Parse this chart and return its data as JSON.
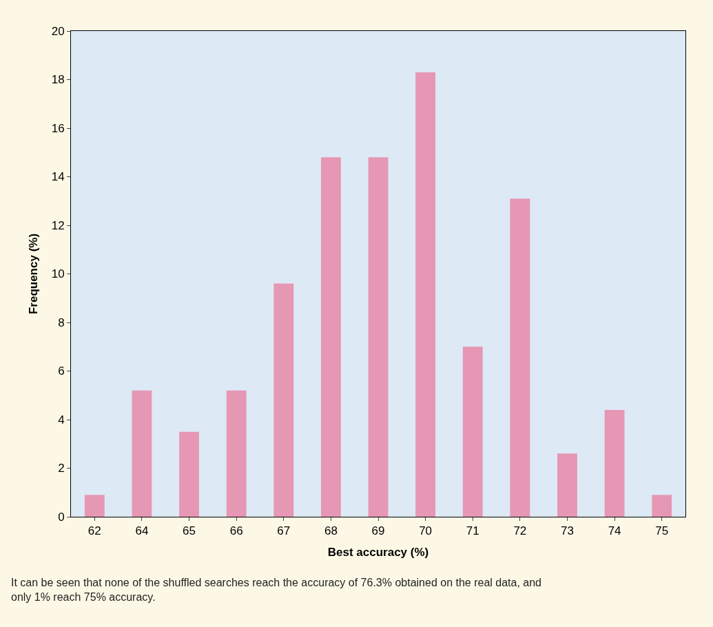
{
  "chart_data": {
    "type": "bar",
    "xlabel": "Best accuracy (%)",
    "ylabel": "Frequency (%)",
    "categories": [
      "62",
      "64",
      "65",
      "66",
      "67",
      "68",
      "69",
      "70",
      "71",
      "72",
      "73",
      "74",
      "75"
    ],
    "values": [
      0.9,
      5.2,
      3.5,
      5.2,
      9.6,
      14.8,
      14.8,
      18.3,
      7.0,
      13.1,
      2.6,
      4.4,
      0.9
    ],
    "color": "#e597b3",
    "ylim": [
      0,
      20
    ],
    "yticks": [
      0,
      2,
      4,
      6,
      8,
      10,
      12,
      14,
      16,
      18,
      20
    ],
    "grid": false,
    "annotations": [
      "It can be seen that none of the shuffled searches reach the accuracy of 76.3% obtained on the real data, and only 1% reach 75% accuracy."
    ]
  }
}
